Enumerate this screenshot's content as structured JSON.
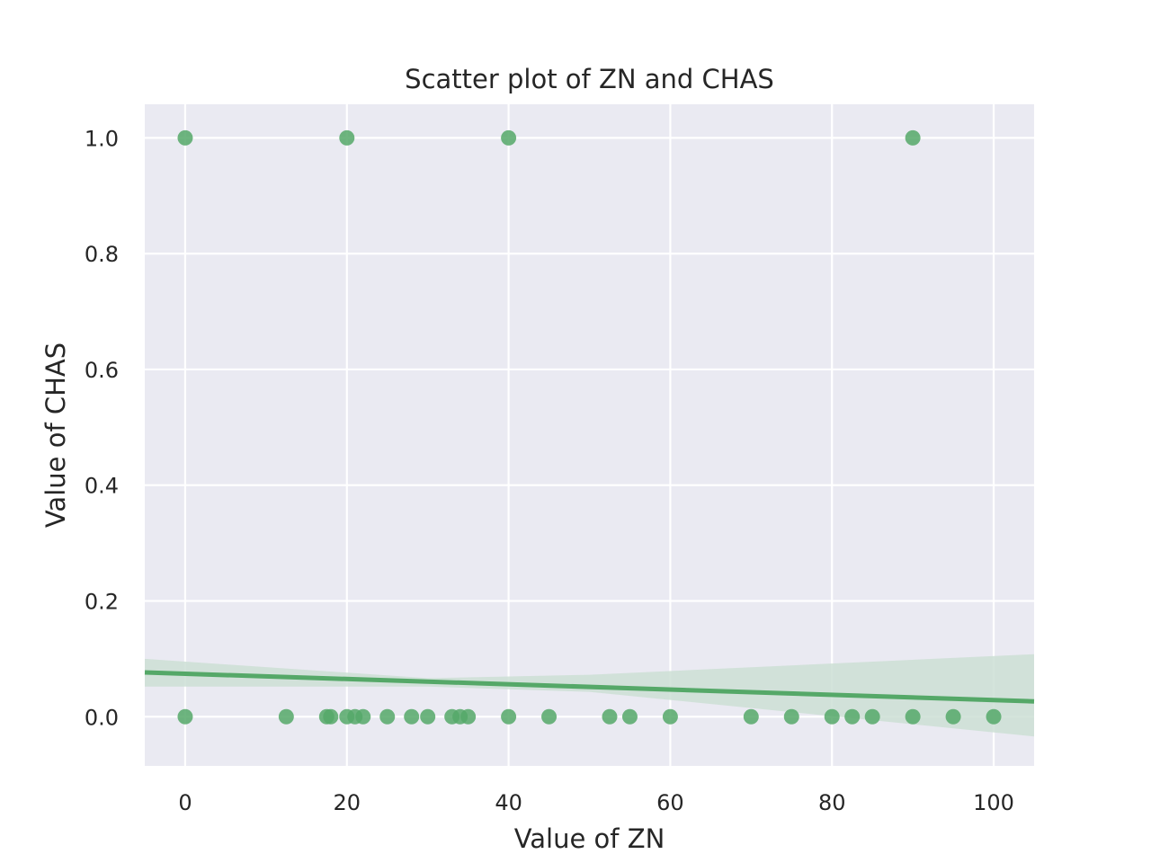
{
  "colors": {
    "plot_background": "#eaeaf2",
    "grid": "#ffffff",
    "points": "#55a868",
    "regression_line": "#55a868",
    "confidence_band": "#cddfd5",
    "text": "#262626"
  },
  "chart_data": {
    "type": "scatter",
    "title": "Scatter plot of ZN and CHAS",
    "xlabel": "Value of ZN",
    "ylabel": "Value of CHAS",
    "xlim": [
      -5,
      105
    ],
    "ylim": [
      -0.085,
      1.058
    ],
    "xticks": [
      0,
      20,
      40,
      60,
      80,
      100
    ],
    "xtick_labels": [
      "0",
      "20",
      "40",
      "60",
      "80",
      "100"
    ],
    "yticks": [
      0.0,
      0.2,
      0.4,
      0.6,
      0.8,
      1.0
    ],
    "ytick_labels": [
      "0.0",
      "0.2",
      "0.4",
      "0.6",
      "0.8",
      "1.0"
    ],
    "grid": true,
    "points": [
      {
        "x": 0,
        "y": 1
      },
      {
        "x": 20,
        "y": 1
      },
      {
        "x": 40,
        "y": 1
      },
      {
        "x": 90,
        "y": 1
      },
      {
        "x": 0,
        "y": 0
      },
      {
        "x": 12.5,
        "y": 0
      },
      {
        "x": 17.5,
        "y": 0
      },
      {
        "x": 18,
        "y": 0
      },
      {
        "x": 20,
        "y": 0
      },
      {
        "x": 21,
        "y": 0
      },
      {
        "x": 22,
        "y": 0
      },
      {
        "x": 25,
        "y": 0
      },
      {
        "x": 28,
        "y": 0
      },
      {
        "x": 30,
        "y": 0
      },
      {
        "x": 33,
        "y": 0
      },
      {
        "x": 34,
        "y": 0
      },
      {
        "x": 35,
        "y": 0
      },
      {
        "x": 40,
        "y": 0
      },
      {
        "x": 45,
        "y": 0
      },
      {
        "x": 52.5,
        "y": 0
      },
      {
        "x": 55,
        "y": 0
      },
      {
        "x": 60,
        "y": 0
      },
      {
        "x": 70,
        "y": 0
      },
      {
        "x": 75,
        "y": 0
      },
      {
        "x": 80,
        "y": 0
      },
      {
        "x": 82.5,
        "y": 0
      },
      {
        "x": 85,
        "y": 0
      },
      {
        "x": 90,
        "y": 0
      },
      {
        "x": 95,
        "y": 0
      },
      {
        "x": 100,
        "y": 0
      }
    ],
    "regression": {
      "x": [
        -5,
        105
      ],
      "y": [
        0.0765,
        0.0265
      ],
      "ci_x": [
        -5,
        30,
        50,
        105
      ],
      "ci_lower": [
        0.052,
        0.052,
        0.043,
        -0.034
      ],
      "ci_upper": [
        0.1,
        0.0665,
        0.0725,
        0.108
      ]
    }
  }
}
